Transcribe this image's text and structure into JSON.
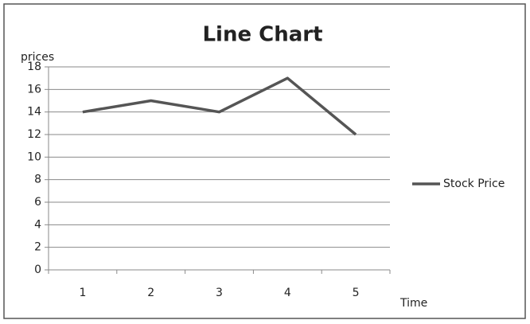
{
  "chart_data": {
    "type": "line",
    "title": "Line Chart",
    "y_label": "prices",
    "x_label": "Time",
    "categories": [
      "1",
      "2",
      "3",
      "4",
      "5"
    ],
    "series": [
      {
        "name": "Stock Price",
        "color": "#555555",
        "values": [
          14,
          15,
          14,
          17,
          12
        ]
      }
    ],
    "ylim": [
      0,
      18
    ],
    "yticks": [
      0,
      2,
      4,
      6,
      8,
      10,
      12,
      14,
      16,
      18
    ],
    "grid": true,
    "legend": "right"
  }
}
